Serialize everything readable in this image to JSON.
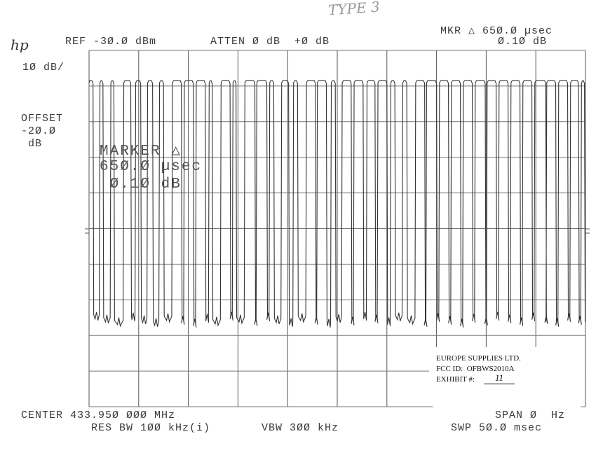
{
  "handwritten_note": "TYPE 3",
  "header": {
    "logo": "hp",
    "ref": "REF -3Ø.Ø dBm",
    "atten": "ATTEN Ø dB  +Ø dB",
    "marker_line1": "MKR △ 65Ø.Ø µsec",
    "marker_line2": "Ø.1Ø dB"
  },
  "left": {
    "scale": "1Ø dB/",
    "offset_label": "OFFSET",
    "offset_value": "-2Ø.Ø",
    "offset_unit": "dB"
  },
  "marker_overlay": {
    "line1": "MARKER △",
    "line2": "65Ø.Ø µsec",
    "line3": " Ø.1Ø dB"
  },
  "footer": {
    "center": "CENTER 433.95Ø ØØØ MHz",
    "res_bw": "RES BW 1ØØ kHz(i)",
    "vbw": "VBW 3ØØ kHz",
    "span": "SPAN Ø  Hz",
    "sweep": "SWP 5Ø.Ø msec"
  },
  "stamp": {
    "company": "EUROPE SUPPLIES LTD.",
    "fcc_id": "FCC ID:  OFBWS2010A",
    "exhibit_label": "EXHIBIT #:",
    "exhibit_value": "11"
  },
  "chart_data": {
    "type": "line",
    "title": "",
    "xlabel": "",
    "ylabel": "",
    "x_unit": "ms",
    "y_unit": "dBm",
    "xlim": [
      0,
      50
    ],
    "ylim": [
      -130,
      -30
    ],
    "x_divisions": 10,
    "y_divisions": 10,
    "grid": true,
    "trace_color": "#333333",
    "high_level": -38.5,
    "low_level": -105,
    "pulses_on_ms": [
      [
        0.0,
        0.4
      ],
      [
        1.1,
        1.4
      ],
      [
        2.2,
        2.5
      ],
      [
        3.5,
        4.2
      ],
      [
        4.7,
        5.2
      ],
      [
        5.9,
        6.4
      ],
      [
        7.1,
        7.5
      ],
      [
        8.4,
        9.3
      ],
      [
        9.6,
        10.5
      ],
      [
        10.8,
        11.7
      ],
      [
        12.1,
        12.4
      ],
      [
        13.3,
        14.2
      ],
      [
        14.5,
        14.8
      ],
      [
        15.7,
        16.7
      ],
      [
        16.9,
        17.9
      ],
      [
        18.2,
        18.6
      ],
      [
        19.4,
        20.1
      ],
      [
        20.6,
        21.0
      ],
      [
        21.9,
        22.8
      ],
      [
        23.0,
        23.9
      ],
      [
        24.4,
        24.8
      ],
      [
        25.5,
        26.4
      ],
      [
        26.7,
        27.6
      ],
      [
        28.0,
        28.8
      ],
      [
        29.1,
        30.0
      ],
      [
        30.4,
        30.8
      ],
      [
        31.6,
        32.0
      ],
      [
        32.9,
        33.8
      ],
      [
        34.0,
        35.0
      ],
      [
        35.3,
        36.2
      ],
      [
        36.5,
        37.4
      ],
      [
        37.7,
        38.6
      ],
      [
        38.9,
        39.9
      ],
      [
        40.1,
        41.0
      ],
      [
        41.3,
        42.2
      ],
      [
        42.5,
        43.4
      ],
      [
        43.7,
        44.6
      ],
      [
        44.9,
        46.0
      ],
      [
        46.1,
        47.0
      ],
      [
        47.3,
        48.2
      ],
      [
        48.5,
        49.3
      ],
      [
        49.6,
        49.9
      ]
    ]
  }
}
